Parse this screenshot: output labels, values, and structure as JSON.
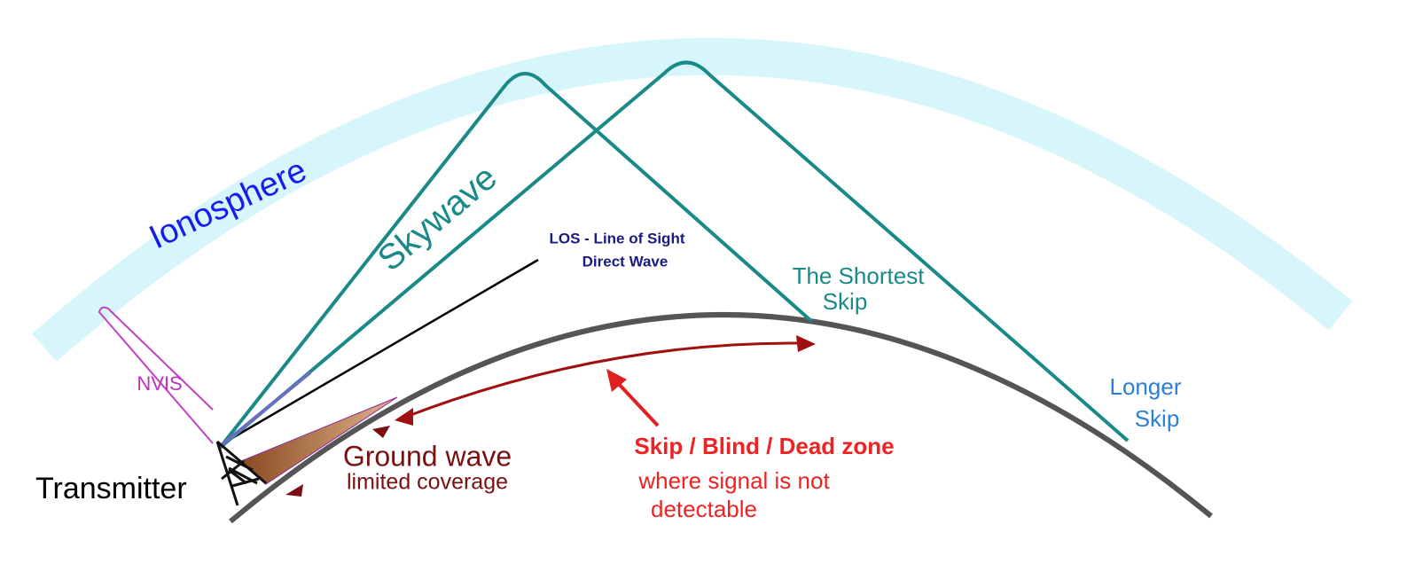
{
  "labels": {
    "ionosphere": "Ionosphere",
    "skywave": "Skywave",
    "los": [
      "LOS - Line of Sight",
      "Direct Wave"
    ],
    "shortest_skip": [
      "The Shortest",
      "Skip"
    ],
    "longer_skip": [
      "Longer",
      "Skip"
    ],
    "nvis": "NVIS",
    "transmitter": "Transmitter",
    "ground_wave": [
      "Ground wave",
      "limited coverage"
    ],
    "skip_zone": [
      "Skip / Blind / Dead zone",
      "where signal is not",
      "detectable"
    ]
  }
}
